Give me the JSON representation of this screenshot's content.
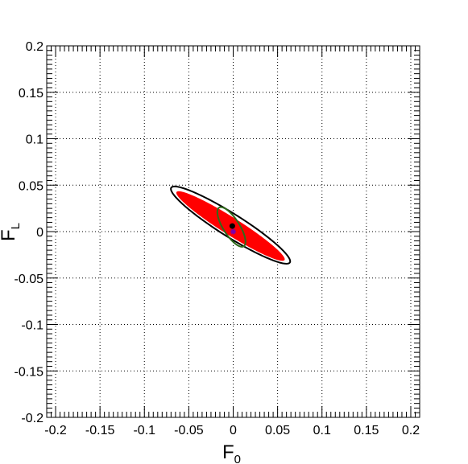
{
  "chart_data": {
    "type": "contour",
    "title": "",
    "x_axis": {
      "label": "F",
      "label_subscript": "0",
      "range": [
        -0.21,
        0.21
      ],
      "ticks": [
        -0.2,
        -0.15,
        -0.1,
        -0.05,
        0,
        0.05,
        0.1,
        0.15,
        0.2
      ],
      "tick_labels": [
        "-0.2",
        "-0.15",
        "-0.1",
        "-0.05",
        "0",
        "0.05",
        "0.1",
        "0.15",
        "0.2"
      ]
    },
    "y_axis": {
      "label": "F",
      "label_subscript": "L",
      "range": [
        -0.2,
        0.2
      ],
      "ticks": [
        -0.2,
        -0.15,
        -0.1,
        -0.05,
        0,
        0.05,
        0.1,
        0.15,
        0.2
      ],
      "tick_labels": [
        "-0.2",
        "-0.15",
        "-0.1",
        "-0.05",
        "0",
        "0.05",
        "0.1",
        "0.15",
        "0.2"
      ]
    },
    "grid": true,
    "regions": [
      {
        "id": "outer-white-contour",
        "fill": "#ffffff",
        "stroke": "#000000",
        "center": [
          -0.003,
          0.007
        ],
        "semi_major": 0.078,
        "semi_minor": 0.0125,
        "angle_deg": -31
      },
      {
        "id": "red-region",
        "fill": "#ff0000",
        "stroke": "none",
        "center": [
          -0.003,
          0.006
        ],
        "semi_major": 0.071,
        "semi_minor": 0.0095,
        "angle_deg": -31
      },
      {
        "id": "green-contour",
        "fill": "none",
        "stroke": "#2e6b1a",
        "center": [
          -0.002,
          0.005
        ],
        "semi_major": 0.025,
        "semi_minor": 0.009,
        "angle_deg": -56
      }
    ],
    "points": [
      {
        "id": "best-fit-point",
        "x": -0.001,
        "y": 0.006,
        "color": "#000000",
        "marker": "circle"
      },
      {
        "id": "reference-point",
        "x": 0.0,
        "y": 0.0,
        "color": "#7a00b0",
        "marker": "star"
      }
    ]
  }
}
